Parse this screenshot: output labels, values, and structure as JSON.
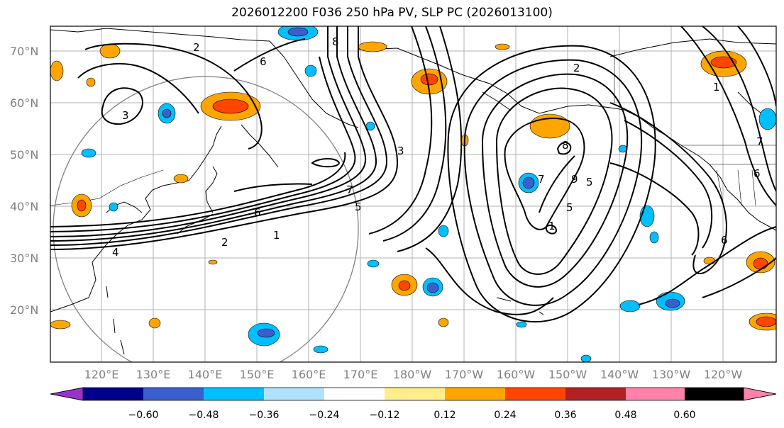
{
  "title": "2026012200 F036 250 hPa PV, SLP PC (2026013100)",
  "lat_labels": [
    "70°N",
    "60°N",
    "50°N",
    "40°N",
    "30°N",
    "20°N"
  ],
  "lon_labels": [
    "120°E",
    "130°E",
    "140°E",
    "150°E",
    "160°E",
    "170°E",
    "180°W",
    "170°W",
    "160°W",
    "150°W",
    "140°W",
    "130°W",
    "120°W"
  ],
  "colorbar": {
    "ticks": [
      "−0.60",
      "−0.48",
      "−0.36",
      "−0.24",
      "−0.12",
      "0.12",
      "0.24",
      "0.36",
      "0.48",
      "0.60"
    ],
    "colors": [
      "#9932cc",
      "#00008b",
      "#3a5fcd",
      "#00bfff",
      "#b0e2ff",
      "#ffffff",
      "#ffec8b",
      "#ffa500",
      "#ff4500",
      "#b22222",
      "#ff82ab"
    ]
  },
  "contour_labels": [
    "2",
    "6",
    "3",
    "8",
    "7",
    "5",
    "6",
    "1",
    "2",
    "4",
    "2",
    "7",
    "8",
    "9",
    "5",
    "1",
    "5",
    "6",
    "6",
    "7",
    "3",
    "1"
  ]
}
